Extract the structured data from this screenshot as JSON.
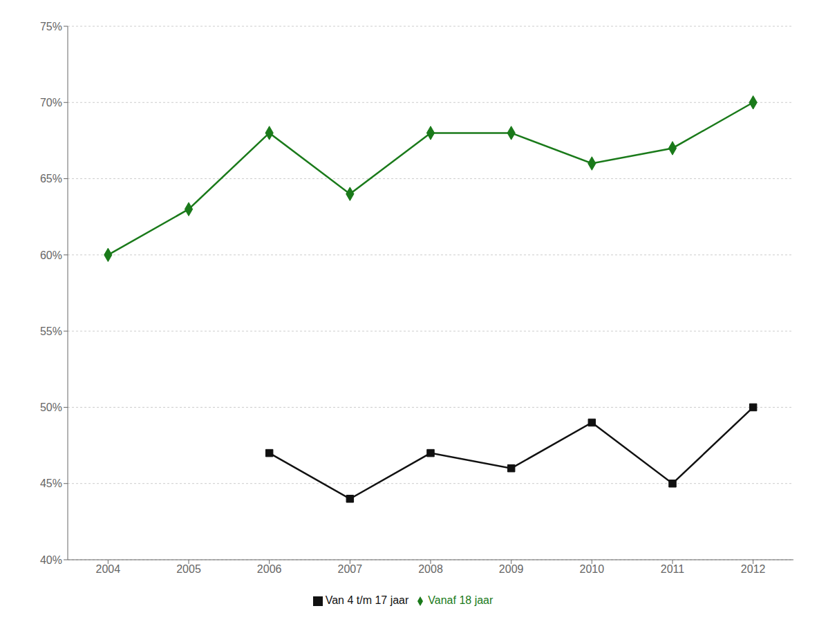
{
  "chart_data": {
    "type": "line",
    "x": [
      2004,
      2005,
      2006,
      2007,
      2008,
      2009,
      2010,
      2011,
      2012
    ],
    "series": [
      {
        "name": "Vanaf 18 jaar",
        "color": "#1a7a1a",
        "marker": "diamond",
        "values": [
          0.6,
          0.63,
          0.68,
          0.64,
          0.68,
          0.68,
          0.66,
          0.67,
          0.7
        ]
      },
      {
        "name": "Van 4 t/m 17 jaar",
        "color": "#111111",
        "marker": "square",
        "values": [
          null,
          null,
          0.47,
          0.44,
          0.47,
          0.46,
          0.49,
          0.45,
          0.5
        ]
      }
    ],
    "xlim": [
      2003.5,
      2012.5
    ],
    "xticks": [
      2004,
      2005,
      2006,
      2007,
      2008,
      2009,
      2010,
      2011,
      2012
    ],
    "ylim": [
      0.4,
      0.75
    ],
    "yticks": [
      {
        "value": 0.4,
        "label": "40%"
      },
      {
        "value": 0.45,
        "label": "45%"
      },
      {
        "value": 0.5,
        "label": "50%"
      },
      {
        "value": 0.55,
        "label": "55%"
      },
      {
        "value": 0.6,
        "label": "60%"
      },
      {
        "value": 0.65,
        "label": "65%"
      },
      {
        "value": 0.7,
        "label": "70%"
      },
      {
        "value": 0.75,
        "label": "75%"
      }
    ],
    "grid": "y",
    "legend": "bottom"
  }
}
